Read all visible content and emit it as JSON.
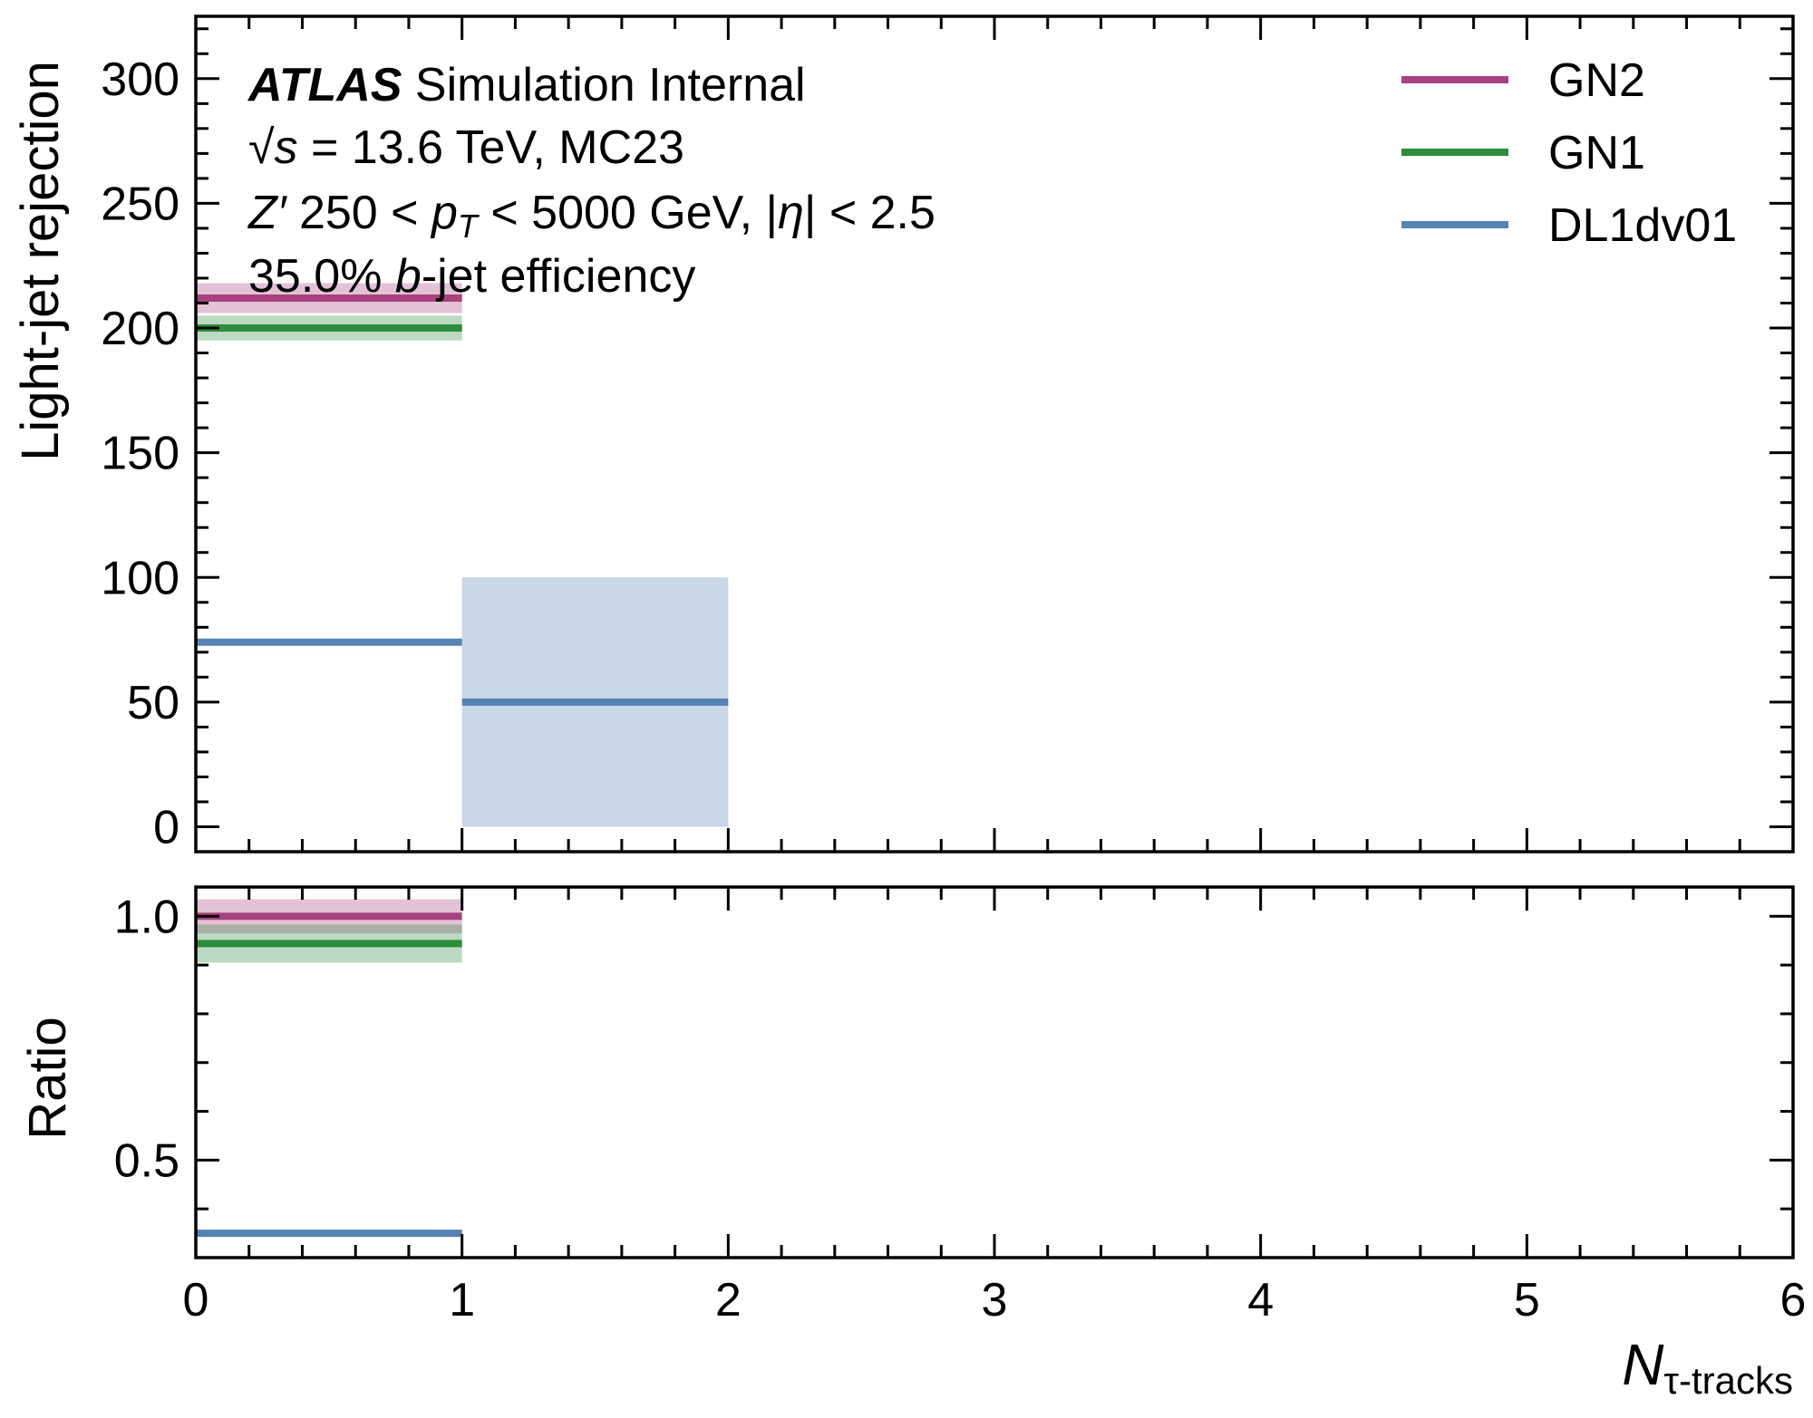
{
  "chart_data": [
    {
      "type": "line",
      "panel": "main",
      "ylabel": "Light-jet rejection",
      "xlim": [
        0,
        6
      ],
      "ylim": [
        -10,
        325
      ],
      "yticks": [
        0,
        50,
        100,
        150,
        200,
        250,
        300
      ],
      "yticklabels": [
        "0",
        "50",
        "100",
        "150",
        "200",
        "250",
        "300"
      ],
      "series": [
        {
          "name": "GN2",
          "color": "#a8427f",
          "bins": [
            {
              "x0": 0,
              "x1": 1,
              "y": 212,
              "err_lo": 206,
              "err_hi": 218
            }
          ]
        },
        {
          "name": "GN1",
          "color": "#2b8d3d",
          "bins": [
            {
              "x0": 0,
              "x1": 1,
              "y": 200,
              "err_lo": 195,
              "err_hi": 205
            }
          ]
        },
        {
          "name": "DL1dv01",
          "color": "#5683b4",
          "bins": [
            {
              "x0": 0,
              "x1": 1,
              "y": 74,
              "err_lo": 73,
              "err_hi": 75
            },
            {
              "x0": 1,
              "x1": 2,
              "y": 50,
              "err_lo": 0,
              "err_hi": 100
            }
          ]
        }
      ],
      "legend": {
        "placement": "top-right",
        "entries": [
          "GN2",
          "GN1",
          "DL1dv01"
        ]
      }
    },
    {
      "type": "line",
      "panel": "ratio",
      "ylabel": "Ratio",
      "xlabel": "N_τ-tracks",
      "xlim": [
        0,
        6
      ],
      "ylim": [
        0.3,
        1.06
      ],
      "xticks": [
        0,
        1,
        2,
        3,
        4,
        5,
        6
      ],
      "xticklabels": [
        "0",
        "1",
        "2",
        "3",
        "4",
        "5",
        "6"
      ],
      "yticks": [
        0.5,
        1.0
      ],
      "yticklabels": [
        "0.5",
        "1.0"
      ],
      "series": [
        {
          "name": "GN2",
          "color": "#a8427f",
          "bins": [
            {
              "x0": 0,
              "x1": 1,
              "y": 1.0,
              "err_lo": 0.965,
              "err_hi": 1.035
            }
          ]
        },
        {
          "name": "GN1",
          "color": "#2b8d3d",
          "bins": [
            {
              "x0": 0,
              "x1": 1,
              "y": 0.944,
              "err_lo": 0.905,
              "err_hi": 0.983
            }
          ]
        },
        {
          "name": "DL1dv01",
          "color": "#5683b4",
          "bins": [
            {
              "x0": 0,
              "x1": 1,
              "y": 0.35,
              "err_lo": 0.343,
              "err_hi": 0.357
            }
          ]
        }
      ]
    }
  ],
  "annotations": {
    "atlas": "ATLAS",
    "status": " Simulation Internal",
    "energy_sqrt": "√",
    "energy_s": "s",
    "energy_rest": " = 13.6 TeV, MC23",
    "sample_z": "Z′",
    "sample_mid": " 250 < ",
    "sample_p": "p",
    "sample_t": "T",
    "sample_rest": " < 5000 GeV, |",
    "sample_eta": "η",
    "sample_end": "| < 2.5",
    "eff_pre": "35.0% ",
    "eff_b": "b",
    "eff_post": "-jet efficiency"
  },
  "axes_text": {
    "main_ylabel": "Light-jet rejection",
    "ratio_ylabel": "Ratio",
    "xlabel_N": "N",
    "xlabel_sub": "τ-tracks"
  }
}
